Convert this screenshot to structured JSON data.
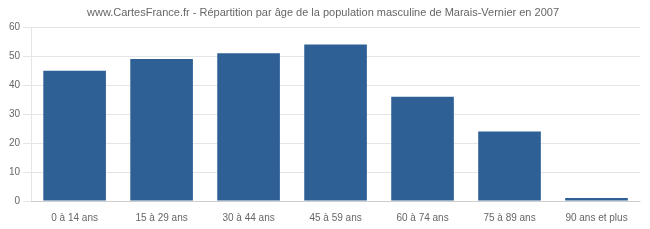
{
  "chart_data": {
    "type": "bar",
    "title": "www.CartesFrance.fr - Répartition par âge de la population masculine de Marais-Vernier en 2007",
    "categories": [
      "0 à 14 ans",
      "15 à 29 ans",
      "30 à 44 ans",
      "45 à 59 ans",
      "60 à 74 ans",
      "75 à 89 ans",
      "90 ans et plus"
    ],
    "values": [
      45,
      49,
      51,
      54,
      36,
      24,
      1
    ],
    "color": "#2e6096",
    "ylim": [
      0,
      60
    ],
    "yticks": [
      0,
      10,
      20,
      30,
      40,
      50,
      60
    ],
    "grid": true
  }
}
